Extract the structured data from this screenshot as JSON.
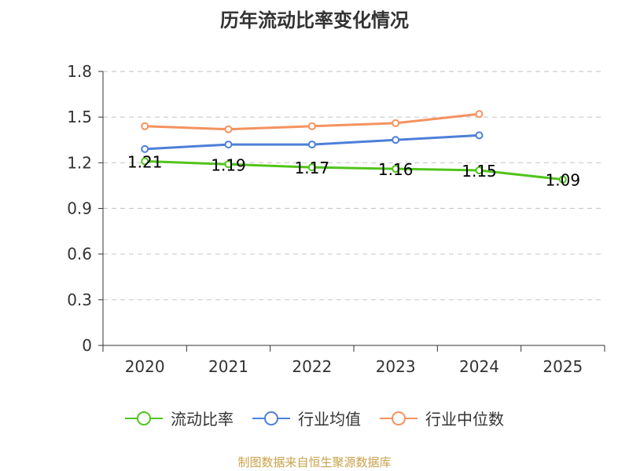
{
  "chart_data": {
    "type": "line",
    "title": "历年流动比率变化情况",
    "categories": [
      "2020",
      "2021",
      "2022",
      "2023",
      "2024",
      "2025"
    ],
    "ylim": [
      0,
      1.8
    ],
    "yticks": [
      "0",
      "0.3",
      "0.6",
      "0.9",
      "1.2",
      "1.5",
      "1.8"
    ],
    "ytick_values": [
      0,
      0.3,
      0.6,
      0.9,
      1.2,
      1.5,
      1.8
    ],
    "grid": true,
    "legend_position": "bottom",
    "series": [
      {
        "name": "流动比率",
        "color": "#52c41a",
        "values": [
          1.21,
          1.19,
          1.17,
          1.16,
          1.15,
          1.09
        ],
        "labels": [
          "1.21",
          "1.19",
          "1.17",
          "1.16",
          "1.15",
          "1.09"
        ]
      },
      {
        "name": "行业均值",
        "color": "#4e7fd8",
        "values": [
          1.29,
          1.32,
          1.32,
          1.35,
          1.38,
          null
        ]
      },
      {
        "name": "行业中位数",
        "color": "#f5925e",
        "values": [
          1.44,
          1.42,
          1.44,
          1.46,
          1.52,
          null
        ]
      }
    ]
  },
  "source_text": "制图数据来自恒生聚源数据库"
}
